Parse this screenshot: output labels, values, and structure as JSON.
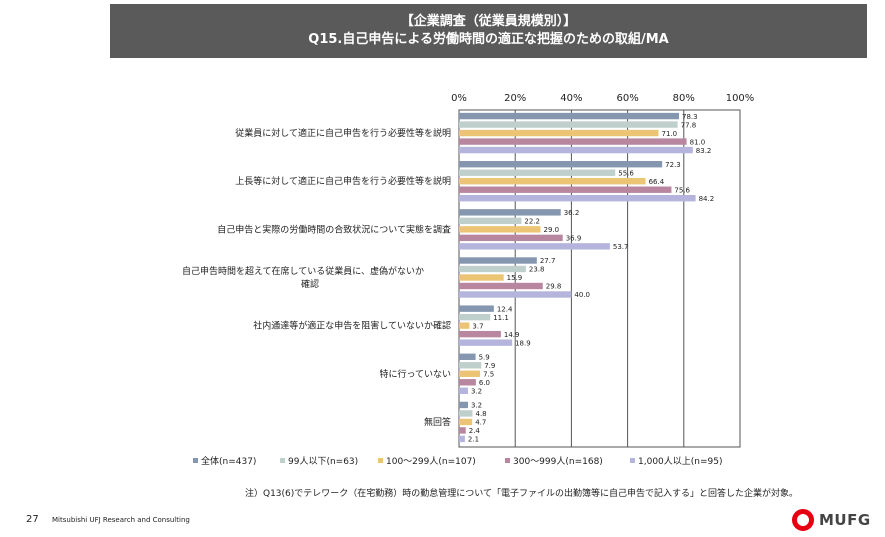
{
  "header": {
    "line1": "【企業調査（従業員規模別）】",
    "line2": "Q15.自己申告による労働時間の適正な把握のための取組/MA"
  },
  "footnote": "注）Q13(6)でテレワーク（在宅勤務）時の勤怠管理について「電子ファイルの出勤簿等に自己申告で記入する」と回答した企業が対象。",
  "page_number": "27",
  "company": "Mitsubishi UFJ Research and Consulting",
  "logo_text": "MUFG",
  "chart_data": {
    "type": "bar",
    "orientation": "horizontal",
    "xlim": [
      0,
      100
    ],
    "tick_labels": [
      "0%",
      "20%",
      "40%",
      "60%",
      "80%",
      "100%"
    ],
    "grid": true,
    "legend_position": "bottom",
    "categories": [
      [
        "従業員に対して適正に自己申告を行う必要性等を説明"
      ],
      [
        "上長等に対して適正に自己申告を行う必要性等を説明"
      ],
      [
        "自己申告と実際の労働時間の合致状況について実態を調査"
      ],
      [
        "自己申告時間を超えて在席している従業員に、虚偽がないか",
        "確認"
      ],
      [
        "社内通達等が適正な申告を阻害していないか確認"
      ],
      [
        "特に行っていない"
      ],
      [
        "無回答"
      ]
    ],
    "series": [
      {
        "name": "全体(n=437)",
        "color": "#8497ae",
        "values": [
          78.3,
          72.3,
          36.2,
          27.7,
          12.4,
          5.9,
          3.2
        ]
      },
      {
        "name": "99人以下(n=63)",
        "color": "#bfcfcc",
        "values": [
          77.8,
          55.6,
          22.2,
          23.8,
          11.1,
          7.9,
          4.8
        ]
      },
      {
        "name": "100～299人(n=107)",
        "color": "#ebc574",
        "values": [
          71.0,
          66.4,
          29.0,
          15.9,
          3.7,
          7.5,
          4.7
        ]
      },
      {
        "name": "300～999人(n=168)",
        "color": "#b8879f",
        "values": [
          81.0,
          75.6,
          36.9,
          29.8,
          14.9,
          6.0,
          2.4
        ]
      },
      {
        "name": "1,000人以上(n=95)",
        "color": "#b4b4dc",
        "values": [
          83.2,
          84.2,
          53.7,
          40.0,
          18.9,
          3.2,
          2.1
        ]
      }
    ]
  }
}
